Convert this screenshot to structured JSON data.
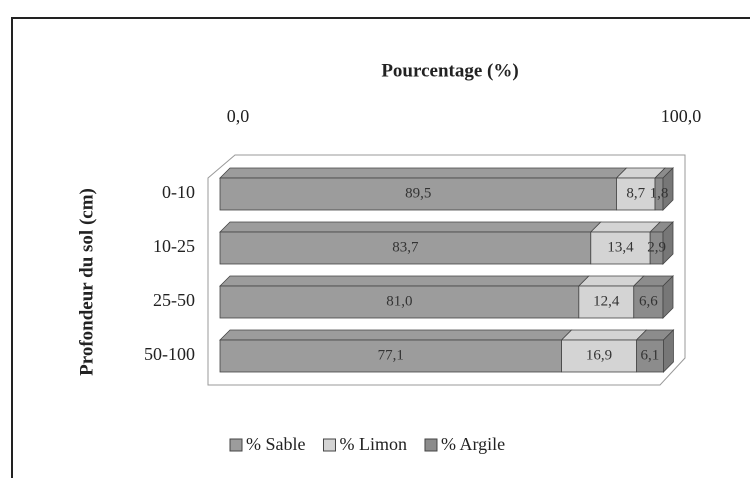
{
  "chart_data": {
    "type": "stacked_bar_horizontal",
    "xlabel": "Pourcentage (%)",
    "ylabel": "Profondeur du sol (cm)",
    "categories": [
      "0-10",
      "10-25",
      "25-50",
      "50-100"
    ],
    "xlim": [
      0,
      100
    ],
    "xticks": [
      {
        "value": 0,
        "label": "0,0"
      },
      {
        "value": 100,
        "label": "100,0"
      }
    ],
    "series": [
      {
        "name": "% Sable",
        "color": "#9c9c9c",
        "values": [
          89.5,
          83.7,
          81.0,
          77.1
        ],
        "value_labels": [
          "89,5",
          "83,7",
          "81,0",
          "77,1"
        ]
      },
      {
        "name": "% Limon",
        "color": "#d4d4d4",
        "values": [
          8.7,
          13.4,
          12.4,
          16.9
        ],
        "value_labels": [
          "8,7",
          "13,4",
          "12,4",
          "16,9"
        ]
      },
      {
        "name": "% Argile",
        "color": "#8c8c8c",
        "values": [
          1.8,
          2.9,
          6.6,
          6.1
        ],
        "value_labels": [
          "1,8",
          "2,9",
          "6,6",
          "6,1"
        ]
      }
    ],
    "legend": "bottom"
  }
}
